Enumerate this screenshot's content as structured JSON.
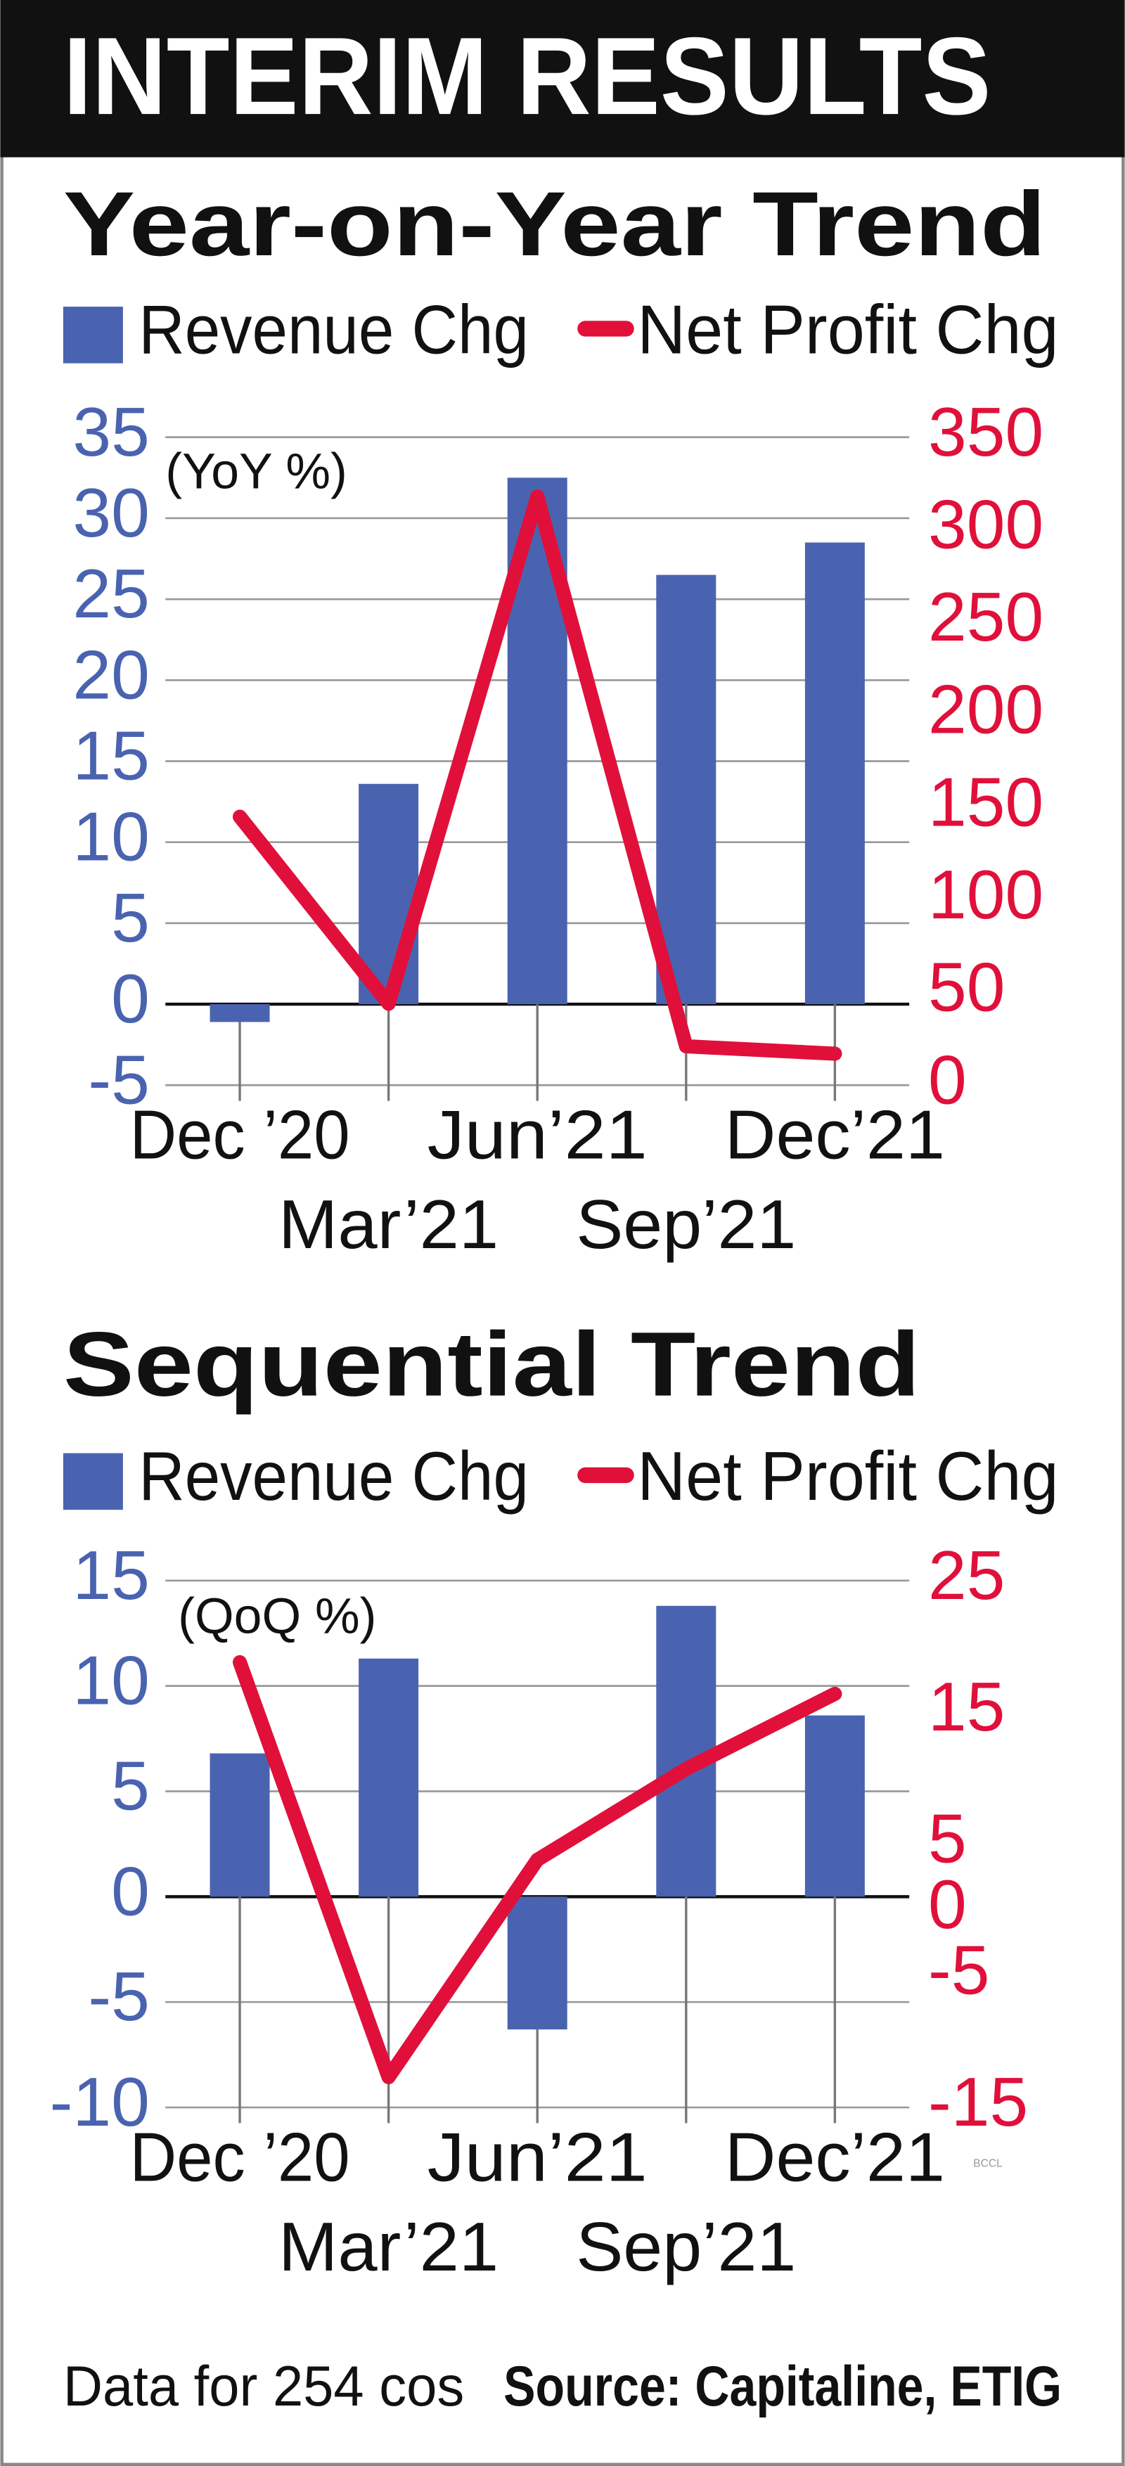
{
  "header": {
    "title": "INTERIM RESULTS"
  },
  "chart_data": [
    {
      "type": "combo",
      "title": "Year-on-Year Trend",
      "subtitle": "(YoY %)",
      "categories": [
        "Dec ’20",
        "Mar’21",
        "Jun’21",
        "Sep’21",
        "Dec’21"
      ],
      "series": [
        {
          "name": "Revenue Chg",
          "color": "#4a63b0",
          "type": "bar",
          "values": [
            -1.1,
            13.6,
            32.5,
            26.5,
            28.5
          ]
        },
        {
          "name": "Net Profit Chg",
          "color": "#e0103a",
          "type": "line",
          "axis": "y2",
          "values": [
            145,
            44,
            318,
            21,
            17
          ]
        }
      ],
      "ylim": [
        -5,
        35
      ],
      "yticks": [
        -5,
        0,
        5,
        10,
        15,
        20,
        25,
        30,
        35
      ],
      "y2lim": [
        0,
        350
      ],
      "y2ticks": [
        0,
        50,
        100,
        150,
        200,
        250,
        300,
        350
      ],
      "grid": true
    },
    {
      "type": "combo",
      "title": "Sequential Trend",
      "subtitle": "(QoQ %)",
      "categories": [
        "Dec ’20",
        "Mar’21",
        "Jun’21",
        "Sep’21",
        "Dec’21"
      ],
      "series": [
        {
          "name": "Revenue Chg",
          "color": "#4a63b0",
          "type": "bar",
          "values": [
            6.8,
            11.3,
            -6.3,
            13.8,
            8.6
          ]
        },
        {
          "name": "Net Profit Chg",
          "color": "#e0103a",
          "type": "line",
          "axis": "y2",
          "values": [
            18.8,
            -12.7,
            3.8,
            10.7,
            16.4
          ]
        }
      ],
      "ylim": [
        -10,
        15
      ],
      "yticks": [
        -10,
        -5,
        0,
        5,
        10,
        15
      ],
      "y2lim": [
        -15,
        25
      ],
      "y2ticks": [
        -15,
        -5,
        0,
        5,
        15,
        25
      ],
      "grid": true
    }
  ],
  "footer": {
    "note": "Data for 254 cos",
    "source": "Source: Capitaline, ETIG"
  },
  "watermark": "BCCL"
}
